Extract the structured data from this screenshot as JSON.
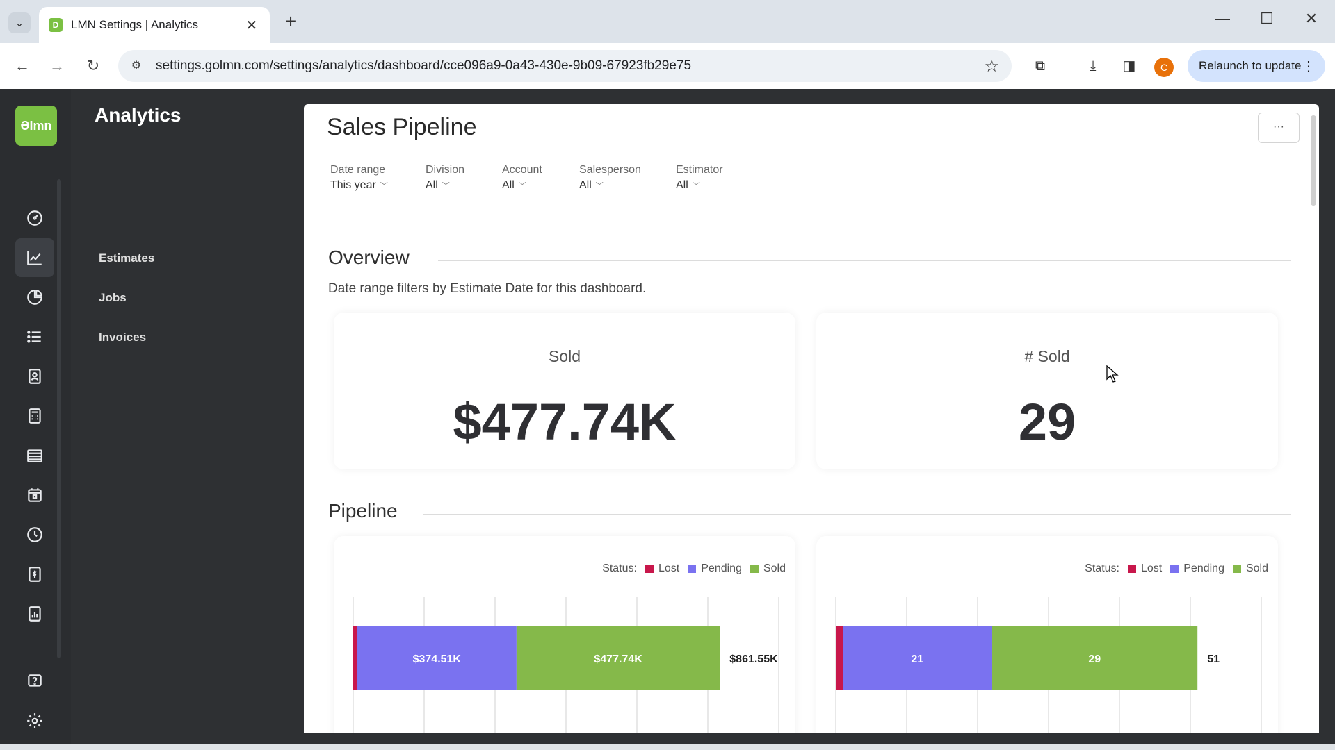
{
  "browser": {
    "tab_title": "LMN Settings | Analytics",
    "url": "settings.golmn.com/settings/analytics/dashboard/cce096a9-0a43-430e-9b09-67923fb29e75",
    "relaunch_label": "Relaunch to update",
    "profile_initial": "C",
    "favicon_letter": "D"
  },
  "app": {
    "logo_text": "ƏImn",
    "rail_icons": [
      "dashboard-icon",
      "analytics-icon",
      "pie-chart-icon",
      "list-icon",
      "contact-card-icon",
      "calculator-icon",
      "stack-icon",
      "calendar-icon",
      "clock-icon",
      "invoice-icon",
      "report-icon",
      "help-icon",
      "settings-icon"
    ]
  },
  "side": {
    "title": "Analytics",
    "items": [
      {
        "label": "Estimates"
      },
      {
        "label": "Jobs"
      },
      {
        "label": "Invoices"
      }
    ]
  },
  "page": {
    "title": "Sales Pipeline",
    "more_label": "···",
    "filters": [
      {
        "label": "Date range",
        "value": "This year"
      },
      {
        "label": "Division",
        "value": "All"
      },
      {
        "label": "Account",
        "value": "All"
      },
      {
        "label": "Salesperson",
        "value": "All"
      },
      {
        "label": "Estimator",
        "value": "All"
      }
    ],
    "overview_title": "Overview",
    "overview_note": "Date range filters by Estimate Date for this dashboard.",
    "kpis": [
      {
        "label": "Sold",
        "value": "$477.74K"
      },
      {
        "label": "# Sold",
        "value": "29"
      }
    ],
    "pipeline_title": "Pipeline",
    "legend": {
      "status_label": "Status:",
      "lost": "Lost",
      "pending": "Pending",
      "sold": "Sold"
    },
    "colors": {
      "lost": "#c8174b",
      "pending": "#7a72f0",
      "sold": "#85b94a"
    }
  },
  "chart_data": [
    {
      "type": "bar",
      "orientation": "horizontal",
      "stacked": true,
      "series": [
        {
          "name": "Lost",
          "values": [
            9.3
          ],
          "label": ""
        },
        {
          "name": "Pending",
          "values": [
            374.51
          ],
          "label": "$374.51K"
        },
        {
          "name": "Sold",
          "values": [
            477.74
          ],
          "label": "$477.74K"
        }
      ],
      "total_label": "$861.55K",
      "xlim": [
        0,
        1000
      ]
    },
    {
      "type": "bar",
      "orientation": "horizontal",
      "stacked": true,
      "series": [
        {
          "name": "Lost",
          "values": [
            1
          ],
          "label": ""
        },
        {
          "name": "Pending",
          "values": [
            21
          ],
          "label": "21"
        },
        {
          "name": "Sold",
          "values": [
            29
          ],
          "label": "29"
        }
      ],
      "total_label": "51",
      "xlim": [
        0,
        60
      ]
    }
  ]
}
